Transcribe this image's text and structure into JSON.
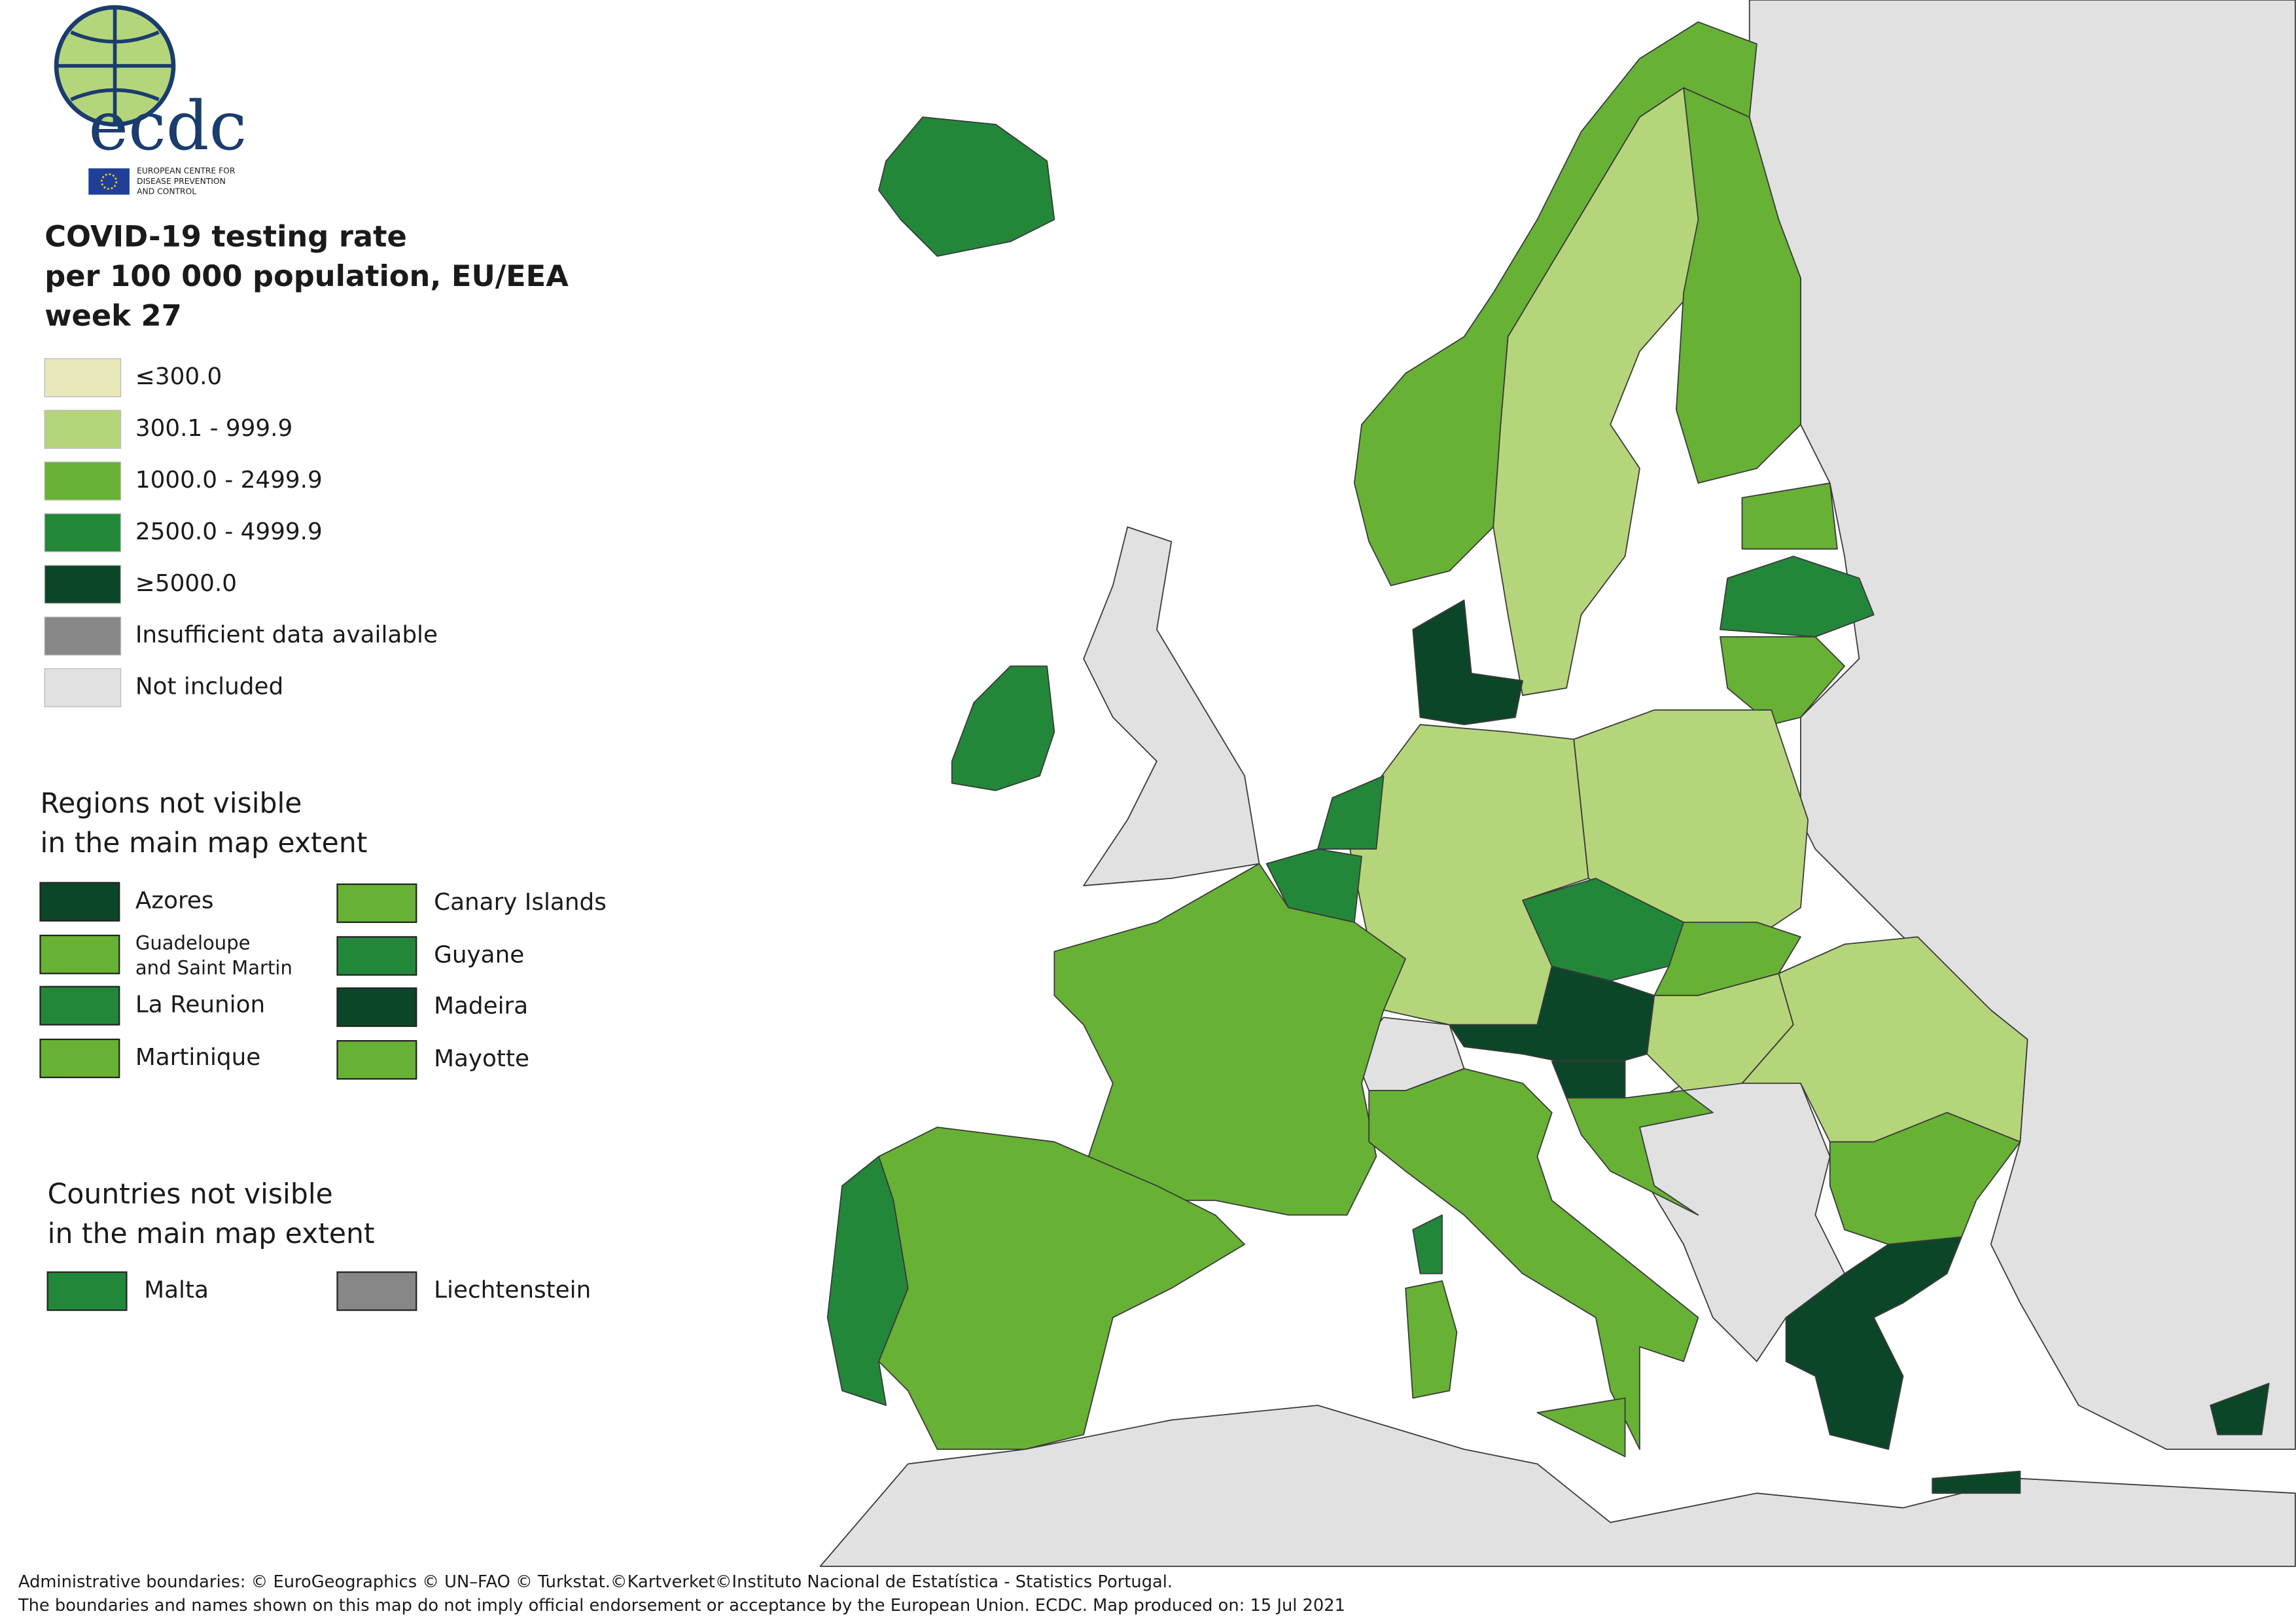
{
  "logo": {
    "acronym": "ecdc",
    "lines": [
      "EUROPEAN CENTRE FOR",
      "DISEASE PREVENTION",
      "AND CONTROL"
    ]
  },
  "title": [
    "COVID-19 testing rate",
    "per 100 000 population, EU/EEA",
    "week 27"
  ],
  "legend": [
    {
      "label": "≤300.0",
      "color": "#e8e8bb"
    },
    {
      "label": "300.1 - 999.9",
      "color": "#b5d57b"
    },
    {
      "label": "1000.0 - 2499.9",
      "color": "#67b135"
    },
    {
      "label": "2500.0 - 4999.9",
      "color": "#23873a"
    },
    {
      "label": "≥5000.0",
      "color": "#0c4628"
    },
    {
      "label": "Insufficient data available",
      "color": "#878787"
    },
    {
      "label": "Not included",
      "color": "#e1e1e1"
    }
  ],
  "regions_not_visible": {
    "heading": [
      "Regions not visible",
      "in the main map extent"
    ],
    "items": [
      {
        "name": "Azores",
        "color": "#0c4628"
      },
      {
        "name": [
          "Guadeloupe",
          "and Saint Martin"
        ],
        "color": "#67b135"
      },
      {
        "name": "La Reunion",
        "color": "#23873a"
      },
      {
        "name": "Martinique",
        "color": "#67b135"
      },
      {
        "name": "Canary Islands",
        "color": "#67b135"
      },
      {
        "name": "Guyane",
        "color": "#23873a"
      },
      {
        "name": "Madeira",
        "color": "#0c4628"
      },
      {
        "name": "Mayotte",
        "color": "#67b135"
      }
    ]
  },
  "countries_not_visible": {
    "heading": [
      "Countries not visible",
      "in the main map extent"
    ],
    "items": [
      {
        "name": "Malta",
        "color": "#23873a"
      },
      {
        "name": "Liechtenstein",
        "color": "#878787"
      }
    ]
  },
  "footer": [
    "Administrative boundaries: © EuroGeographics © UN–FAO © Turkstat.©Kartverket©Instituto Nacional de Estatística - Statistics Portugal.",
    "The boundaries and names shown on this map do not imply official endorsement or acceptance by the European Union. ECDC. Map produced on: 15 Jul 2021"
  ]
}
